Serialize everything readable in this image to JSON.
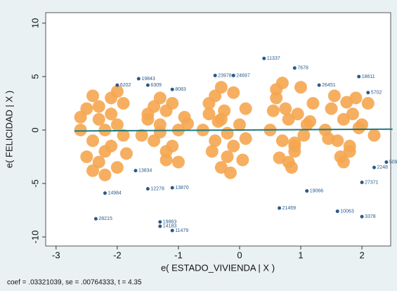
{
  "chart_data": {
    "type": "scatter",
    "xlabel": "e( ESTADO_VIVIENDA | X )",
    "ylabel": "e( FELICIDAD | X )",
    "note": "coef = .03321039, se = .00764333, t = 4.35",
    "xlim": [
      -3.17,
      2.47
    ],
    "ylim": [
      -10.85,
      10.98
    ],
    "xticks": [
      -3,
      -2,
      -1,
      0,
      1,
      2
    ],
    "yticks": [
      10,
      5,
      0,
      -5,
      -10
    ],
    "series": [
      {
        "color": "#f5a650",
        "x": [
          -2.5,
          -2.3,
          -2.1,
          -2.4,
          -2.2,
          -2.0,
          -2.6,
          -2.3,
          -1.9,
          -2.1,
          -2.4,
          -2.2,
          -2.0,
          -2.5,
          -1.9,
          -2.3,
          -2.1,
          -2.4,
          -2.0,
          -2.2,
          -2.6,
          -1.85,
          -1.5,
          -1.3,
          -1.1,
          -1.4,
          -1.2,
          -1.0,
          -1.6,
          -1.3,
          -0.9,
          -1.2,
          -1.4,
          -1.1,
          -1.5,
          -1.0,
          -1.3,
          -1.2,
          -0.85,
          -0.5,
          -0.3,
          -0.1,
          -0.4,
          -0.2,
          0.0,
          -0.6,
          -0.3,
          0.1,
          -0.1,
          -0.4,
          -0.2,
          -0.5,
          0.05,
          -0.3,
          -0.15,
          -0.45,
          -0.25,
          0.1,
          -0.35,
          0.6,
          0.8,
          1.0,
          0.7,
          0.9,
          1.1,
          0.5,
          0.8,
          1.2,
          0.9,
          0.6,
          0.75,
          1.05,
          0.65,
          0.95,
          0.85,
          0.55,
          1.15,
          0.7,
          0.9,
          1.5,
          1.7,
          1.9,
          1.6,
          1.8,
          2.0,
          1.4,
          1.7,
          2.1,
          1.8,
          1.55,
          1.95,
          1.65,
          1.85,
          2.2,
          1.45,
          1.75
        ],
        "y": [
          2.0,
          1.0,
          3.0,
          -1.0,
          -2.0,
          0.5,
          0.0,
          -3.0,
          2.5,
          -1.5,
          3.2,
          0.0,
          -3.5,
          -2.5,
          -0.5,
          2.2,
          1.5,
          -3.8,
          3.6,
          -4.2,
          1.2,
          -2.2,
          1.5,
          0.5,
          2.5,
          -1.0,
          -2.0,
          0.0,
          -0.5,
          3.0,
          1.2,
          -2.8,
          2.2,
          -1.5,
          1.0,
          -3.0,
          -0.2,
          1.8,
          0.6,
          2.5,
          1.0,
          3.5,
          -1.0,
          -2.5,
          0.5,
          0.0,
          -3.5,
          2.0,
          -1.5,
          3.2,
          -0.3,
          1.5,
          -2.8,
          4.0,
          -4.0,
          -2.0,
          1.8,
          -0.8,
          0.8,
          3.0,
          1.0,
          4.0,
          -1.0,
          -2.0,
          0.5,
          0.0,
          -3.0,
          2.5,
          -1.5,
          3.8,
          2.0,
          -0.5,
          -2.6,
          1.5,
          -3.5,
          1.8,
          0.8,
          4.4,
          -1.2,
          2.0,
          1.0,
          3.0,
          -1.0,
          -2.0,
          0.5,
          0.0,
          -3.0,
          2.5,
          -1.5,
          3.2,
          0.2,
          -2.5,
          1.5,
          -0.5,
          -0.8,
          2.6
        ]
      },
      {
        "color": "#2b5a8a",
        "x": [
          0.4,
          0.9,
          -2.35,
          -1.1,
          -1.3,
          -1.3,
          2.0,
          1.6,
          0.65,
          1.95,
          -0.4,
          -0.1,
          1.3,
          -1.65,
          -2.0,
          2.4,
          2.0,
          -1.7,
          -1.5,
          -1.1,
          1.1,
          2.2,
          2.1,
          -1.1,
          -1.5,
          -2.2
        ],
        "y": [
          6.7,
          5.8,
          -8.3,
          -9.4,
          -9.0,
          -8.6,
          -8.1,
          -7.6,
          -7.3,
          5.0,
          5.1,
          5.1,
          4.2,
          4.8,
          4.2,
          -3.0,
          -4.9,
          -3.8,
          -5.5,
          -5.4,
          -5.7,
          -3.5,
          3.5,
          3.8,
          4.2,
          -5.9
        ],
        "labels": [
          "11337",
          "7678",
          "28215",
          "11479",
          "14183",
          "19863",
          "3378",
          "10063",
          "21459",
          "18611",
          "23978",
          "24697",
          "26451",
          "19843",
          "6202",
          "5090",
          "27371",
          "13834",
          "12278",
          "13870",
          "19066",
          "2248",
          "5702",
          "8083",
          "6309",
          "14984"
        ]
      }
    ],
    "fit": {
      "color": "#1f7a80",
      "x": [
        -2.7,
        2.5
      ],
      "y": [
        -0.09,
        0.08
      ]
    }
  }
}
